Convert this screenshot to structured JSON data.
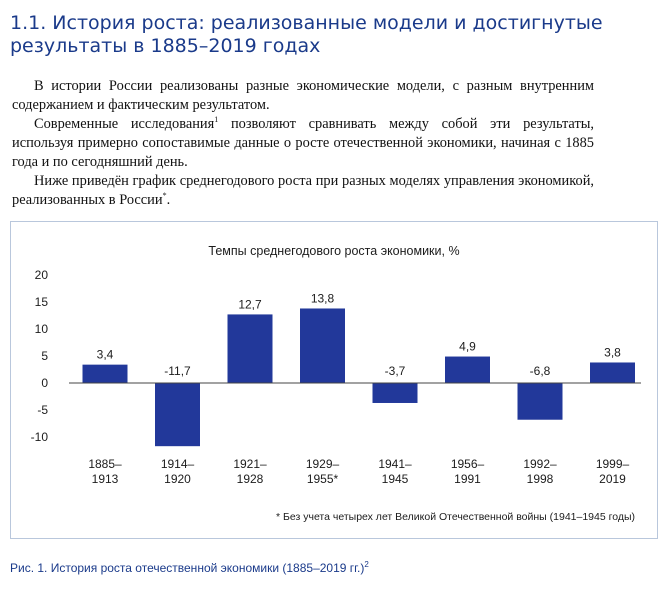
{
  "heading": {
    "line1": "1.1. История роста: реализованные модели и достигнутые",
    "line2": "результаты в 1885–2019 годах"
  },
  "paragraphs": [
    {
      "text": "В истории России реализованы разные экономические модели, с разным внутренним содержанием и фактическим результатом.",
      "sup": ""
    },
    {
      "text": "Современные исследования",
      "sup": "1",
      "tail": " позволяют сравнивать между собой эти результаты, используя примерно сопоставимые данные о росте отечественной экономики, начиная с 1885 года и по сегодняшний день."
    },
    {
      "text": "Ниже приведён график среднегодового роста при разных моделях управления экономикой, реализованных в России",
      "sup": "*",
      "tail": "."
    }
  ],
  "chart_data": {
    "type": "bar",
    "title": "Темпы среднегодового роста экономики, %",
    "categories": [
      [
        "1885–",
        "1913"
      ],
      [
        "1914–",
        "1920"
      ],
      [
        "1921–",
        "1928"
      ],
      [
        "1929–",
        "1955*"
      ],
      [
        "1941–",
        "1945"
      ],
      [
        "1956–",
        "1991"
      ],
      [
        "1992–",
        "1998"
      ],
      [
        "1999–",
        "2019"
      ]
    ],
    "values": [
      3.4,
      -11.7,
      12.7,
      13.8,
      -3.7,
      4.9,
      -6.8,
      3.8
    ],
    "value_labels": [
      "3,4",
      "-11,7",
      "12,7",
      "13,8",
      "-3,7",
      "4,9",
      "-6,8",
      "3,8"
    ],
    "yticks": [
      20,
      15,
      10,
      5,
      0,
      -5,
      -10
    ],
    "ytick_labels": [
      "20",
      "15",
      "10",
      "5",
      "0",
      "-5",
      "-10"
    ],
    "ylim": [
      -12,
      20
    ],
    "grid": false,
    "bar_color": "#22389a",
    "footnote": "* Без учета четырех лет Великой Отечественной войны (1941–1945 годы)"
  },
  "caption": {
    "text": "Рис. 1. История роста отечественной экономики (1885–2019 гг.)",
    "sup": "2"
  }
}
